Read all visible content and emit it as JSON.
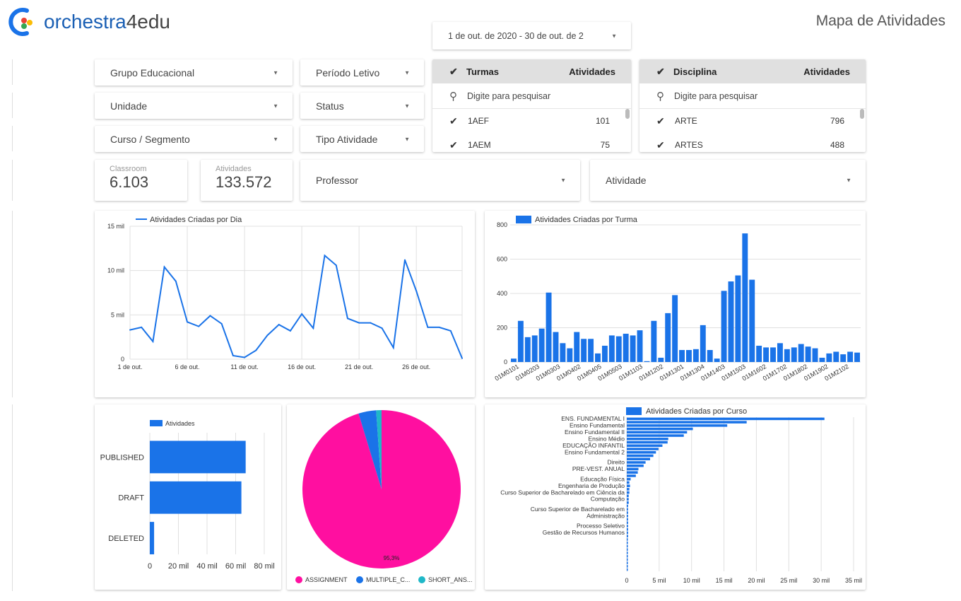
{
  "brand": {
    "name_main": "orchestra",
    "name_suffix": "4edu"
  },
  "page_title": "Mapa de Atividades",
  "date_range": "1 de out. de 2020 - 30 de out. de 2",
  "filters": {
    "grupo": "Grupo Educacional",
    "periodo": "Período Letivo",
    "unidade": "Unidade",
    "status": "Status",
    "curso": "Curso / Segmento",
    "tipo": "Tipo Atividade",
    "professor": "Professor",
    "atividade": "Atividade"
  },
  "turmas_table": {
    "header": "Turmas",
    "metric": "Atividades",
    "search_placeholder": "Digite para pesquisar",
    "rows": [
      {
        "name": "1AEF",
        "value": "101"
      },
      {
        "name": "1AEM",
        "value": "75"
      }
    ]
  },
  "disciplina_table": {
    "header": "Disciplina",
    "metric": "Atividades",
    "search_placeholder": "Digite para pesquisar",
    "rows": [
      {
        "name": "ARTE",
        "value": "796"
      },
      {
        "name": "ARTES",
        "value": "488"
      }
    ]
  },
  "kpis": {
    "classroom_label": "Classroom",
    "classroom_value": "6.103",
    "atividades_label": "Atividades",
    "atividades_value": "133.572"
  },
  "colors": {
    "blue": "#1a73e8",
    "bar_blue": "#1a73e8",
    "pink": "#ff0fa0",
    "cyan": "#1fb8c8",
    "grid": "#e0e0e0"
  },
  "chart_data": [
    {
      "type": "line",
      "title": "Atividades Criadas por Dia",
      "x": [
        1,
        2,
        3,
        4,
        5,
        6,
        7,
        8,
        9,
        10,
        11,
        12,
        13,
        14,
        15,
        16,
        17,
        18,
        19,
        20,
        21,
        22,
        23,
        24,
        25,
        26,
        27,
        28,
        29,
        30
      ],
      "values": [
        3300,
        3600,
        2000,
        10400,
        8800,
        4200,
        3700,
        4900,
        4000,
        400,
        200,
        1000,
        2700,
        3900,
        3200,
        5100,
        3500,
        11700,
        10600,
        4600,
        4100,
        4100,
        3500,
        1300,
        11200,
        7700,
        3600,
        3600,
        3200,
        100
      ],
      "xtick_labels": [
        "1 de out.",
        "6 de out.",
        "11 de out.",
        "16 de out.",
        "21 de out.",
        "26 de out."
      ],
      "xtick_pos": [
        1,
        6,
        11,
        16,
        21,
        26
      ],
      "ytick_labels": [
        "0",
        "5 mil",
        "10 mil",
        "15 mil"
      ],
      "ylim": [
        0,
        15000
      ]
    },
    {
      "type": "bar",
      "title": "Atividades Criadas por Turma",
      "values": [
        20,
        240,
        145,
        155,
        195,
        405,
        175,
        110,
        80,
        175,
        135,
        135,
        50,
        95,
        155,
        150,
        165,
        155,
        185,
        5,
        240,
        25,
        285,
        390,
        70,
        70,
        75,
        215,
        70,
        20,
        415,
        470,
        505,
        750,
        480,
        95,
        85,
        85,
        110,
        75,
        85,
        105,
        90,
        80,
        25,
        50,
        60,
        45,
        60,
        55
      ],
      "xtick_labels": [
        "01M0101",
        "01M0203",
        "01M0303",
        "01M0402",
        "01M0405",
        "01M0503",
        "01M1103",
        "01M1202",
        "01M1301",
        "01M1304",
        "01M1403",
        "01M1503",
        "01M1602",
        "01M1702",
        "01M1802",
        "01M1902",
        "01M2102"
      ],
      "ytick_labels": [
        "0",
        "200",
        "400",
        "600",
        "800"
      ],
      "ylim": [
        0,
        800
      ]
    },
    {
      "type": "bar",
      "orientation": "horizontal",
      "legend": "Atividades",
      "categories": [
        "PUBLISHED",
        "DRAFT",
        "DELETED"
      ],
      "values": [
        67000,
        64000,
        3000
      ],
      "xtick_labels": [
        "0",
        "20 mil",
        "40 mil",
        "60 mil",
        "80 mil"
      ],
      "xlim": [
        0,
        80000
      ]
    },
    {
      "type": "pie",
      "slices": [
        {
          "name": "ASSIGNMENT",
          "value": 95.3,
          "color": "#ff0fa0"
        },
        {
          "name": "MULTIPLE_C...",
          "value": 3.6,
          "color": "#1a73e8"
        },
        {
          "name": "SHORT_ANS...",
          "value": 1.1,
          "color": "#1fb8c8"
        }
      ],
      "label": "95,3%"
    },
    {
      "type": "bar",
      "orientation": "horizontal",
      "title": "Atividades Criadas por Curso",
      "values": [
        30500,
        18500,
        15500,
        10200,
        9300,
        8800,
        6400,
        6300,
        5500,
        4900,
        4500,
        4100,
        3600,
        2900,
        2600,
        1800,
        1700,
        1400,
        600,
        400,
        500,
        400,
        400,
        300,
        300,
        300,
        200,
        200,
        200,
        200,
        200,
        200,
        200,
        200,
        200,
        200,
        100,
        100,
        100,
        100,
        100,
        100,
        100,
        100,
        100,
        100
      ],
      "category_labels": [
        {
          "text": "ENS. FUNDAMENTAL I",
          "row": 0
        },
        {
          "text": "Ensino Fundamental",
          "row": 2
        },
        {
          "text": "Ensino Fundamental II",
          "row": 4
        },
        {
          "text": "Ensino Médio",
          "row": 6
        },
        {
          "text": "EDUCAÇÃO INFANTIL",
          "row": 8
        },
        {
          "text": "Ensino Fundamental 2",
          "row": 10
        },
        {
          "text": "Direito",
          "row": 13
        },
        {
          "text": "PRE-VEST. ANUAL",
          "row": 15
        },
        {
          "text": "Educação Física",
          "row": 18
        },
        {
          "text": "Engenharia de Produção",
          "row": 20
        },
        {
          "text": "Curso Superior de Bacharelado em Ciência da",
          "row": 22
        },
        {
          "text": "Computação",
          "row": 24
        },
        {
          "text": "Curso Superior de Bacharelado em",
          "row": 27
        },
        {
          "text": "Administração",
          "row": 29
        },
        {
          "text": "Processo Seletivo",
          "row": 32
        },
        {
          "text": "Gestão de Recursos Humanos",
          "row": 34
        }
      ],
      "xtick_labels": [
        "0",
        "5 mil",
        "10 mil",
        "15 mil",
        "20 mil",
        "25 mil",
        "30 mil",
        "35 mil"
      ],
      "xlim": [
        0,
        35000
      ]
    }
  ]
}
